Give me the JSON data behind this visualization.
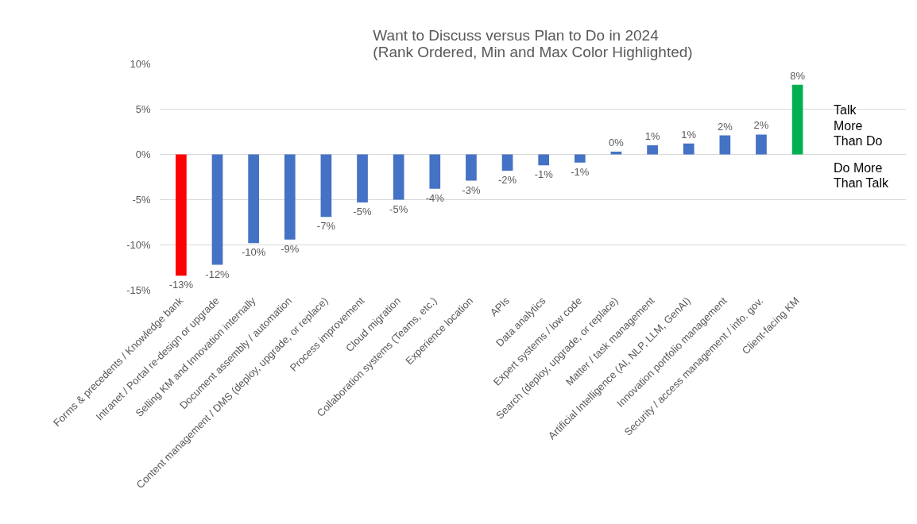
{
  "chart_data": {
    "type": "bar",
    "title": "Want to Discuss versus Plan to Do in 2024\n(Rank Ordered, Min and Max Color Highlighted)",
    "categories": [
      "Forms & precedents / Knowledge bank",
      "Intranet / Portal re-design or upgrade",
      "Selling KM and Innovation internally",
      "Document assembly / automation",
      "Content management / DMS (deploy, upgrade, or replace)",
      "Process improvement",
      "Cloud migration",
      "Collaboration systems (Teams, etc.)",
      "Experience location",
      "APIs",
      "Data analytics",
      "Expert systems / low code",
      "Search (deploy, upgrade, or replace)",
      "Matter / task management",
      "Artificial Intelligence (AI, NLP, LLM, GenAI)",
      "Innovation portfolio management",
      "Security / access management / info. gov.",
      "Client-facing KM"
    ],
    "values": [
      -13.4,
      -12.2,
      -9.8,
      -9.4,
      -6.9,
      -5.3,
      -5.0,
      -3.8,
      -2.9,
      -1.8,
      -1.2,
      -0.9,
      0.3,
      1.0,
      1.2,
      2.1,
      2.2,
      7.7
    ],
    "value_labels": [
      "-13%",
      "-12%",
      "-10%",
      "-9%",
      "-7%",
      "-5%",
      "-5%",
      "-4%",
      "-3%",
      "-2%",
      "-1%",
      "-1%",
      "0%",
      "1%",
      "1%",
      "2%",
      "2%",
      "8%"
    ],
    "colors": [
      "#ff0000",
      "#4472c4",
      "#4472c4",
      "#4472c4",
      "#4472c4",
      "#4472c4",
      "#4472c4",
      "#4472c4",
      "#4472c4",
      "#4472c4",
      "#4472c4",
      "#4472c4",
      "#4472c4",
      "#4472c4",
      "#4472c4",
      "#4472c4",
      "#4472c4",
      "#00b050"
    ],
    "ylim": [
      -15,
      10
    ],
    "yticks": [
      {
        "value": -15,
        "label": "-15%"
      },
      {
        "value": -10,
        "label": "-10%"
      },
      {
        "value": -5,
        "label": "-5%"
      },
      {
        "value": 0,
        "label": "0%"
      },
      {
        "value": 5,
        "label": "5%"
      },
      {
        "value": 10,
        "label": "10%"
      }
    ],
    "grid": "y",
    "annotations": [
      "Talk\nMore\nThan Do",
      "Do More\nThan Talk"
    ]
  }
}
